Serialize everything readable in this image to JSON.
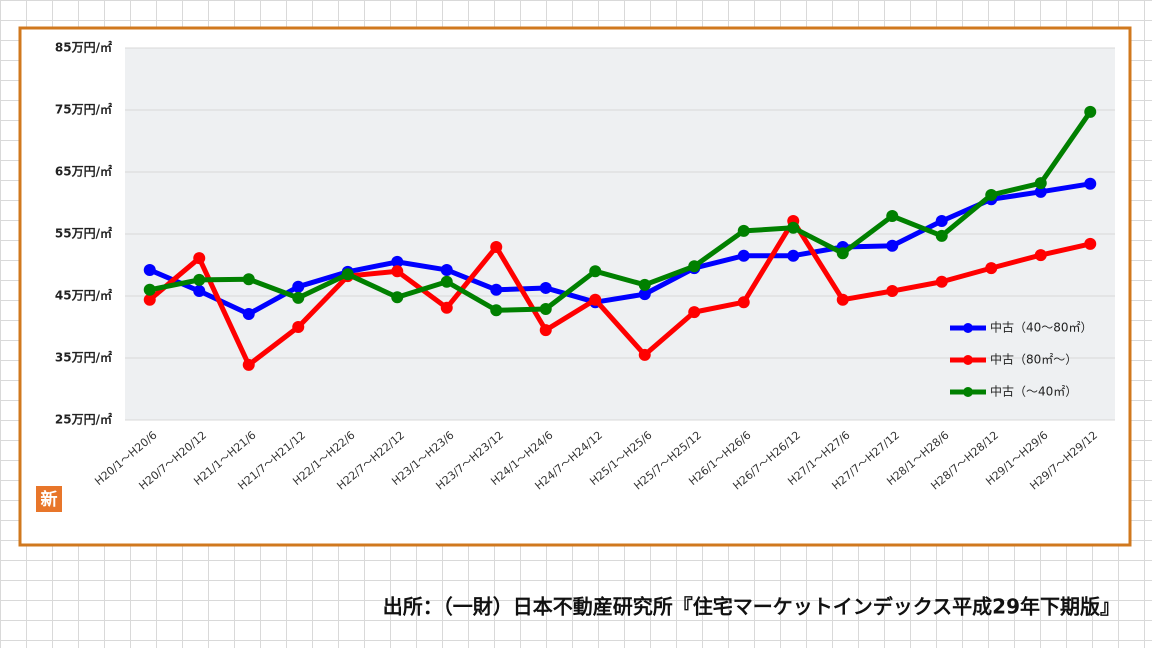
{
  "chart_data": {
    "type": "line",
    "categories": [
      "H20/1～H20/6",
      "H20/7～H20/12",
      "H21/1～H21/6",
      "H21/7～H21/12",
      "H22/1～H22/6",
      "H22/7～H22/12",
      "H23/1～H23/6",
      "H23/7～H23/12",
      "H24/1～H24/6",
      "H24/7～H24/12",
      "H25/1～H25/6",
      "H25/7～H25/12",
      "H26/1～H26/6",
      "H26/7～H26/12",
      "H27/1～H27/6",
      "H27/7～H27/12",
      "H28/1～H28/6",
      "H28/7～H28/12",
      "H29/1～H29/6",
      "H29/7～H29/12"
    ],
    "series": [
      {
        "name": "中古（40～80㎡）",
        "color": "#0000ff",
        "values": [
          49.2,
          45.8,
          42.1,
          46.5,
          48.9,
          50.5,
          49.2,
          46.0,
          46.3,
          44.0,
          45.3,
          49.5,
          51.5,
          51.5,
          52.9,
          53.1,
          57.1,
          60.6,
          61.8,
          63.1
        ]
      },
      {
        "name": "中古（80㎡～）",
        "color": "#ff0000",
        "values": [
          44.4,
          51.1,
          33.9,
          40.0,
          48.2,
          49.0,
          43.1,
          52.9,
          39.5,
          44.4,
          35.5,
          42.4,
          44.0,
          57.1,
          44.4,
          45.8,
          47.3,
          49.5,
          51.6,
          53.4
        ]
      },
      {
        "name": "中古（～40㎡）",
        "color": "#008000",
        "values": [
          46.0,
          47.6,
          47.7,
          44.7,
          48.5,
          44.8,
          47.3,
          42.7,
          42.9,
          49.0,
          46.8,
          49.8,
          55.5,
          56.0,
          51.9,
          57.9,
          54.7,
          61.3,
          63.2,
          74.7
        ]
      }
    ],
    "ylim": [
      25,
      85
    ],
    "yticks": [
      {
        "value": 25,
        "label": "25万円/㎡"
      },
      {
        "value": 35,
        "label": "35万円/㎡"
      },
      {
        "value": 45,
        "label": "45万円/㎡"
      },
      {
        "value": 55,
        "label": "55万円/㎡"
      },
      {
        "value": 65,
        "label": "65万円/㎡"
      },
      {
        "value": 75,
        "label": "75万円/㎡"
      },
      {
        "value": 85,
        "label": "85万円/㎡"
      }
    ],
    "grid": true,
    "legend": "lower right"
  },
  "badge": "新",
  "source": "出所：（一財）日本不動産研究所『住宅マーケットインデックス平成29年下期版』"
}
